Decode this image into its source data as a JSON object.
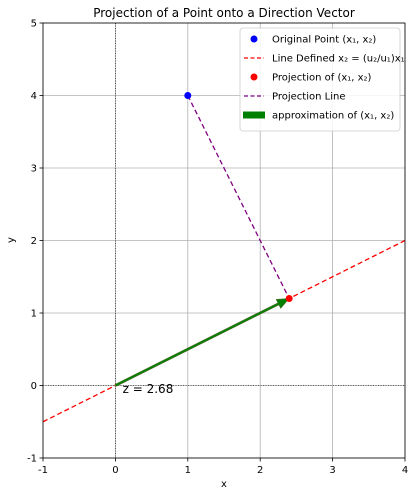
{
  "chart_data": {
    "type": "line",
    "title": "Projection of a Point onto a Direction Vector",
    "xlabel": "x",
    "ylabel": "y",
    "xlim": [
      -1,
      4
    ],
    "ylim": [
      -1,
      5
    ],
    "xticks": [
      -1,
      0,
      1,
      2,
      3,
      4
    ],
    "yticks": [
      -1,
      0,
      1,
      2,
      3,
      4,
      5
    ],
    "grid": true,
    "legend_position": "top-right",
    "original_point": {
      "x": 1,
      "y": 4,
      "color": "#0000ff"
    },
    "direction_line": {
      "slope": 0.5,
      "x_range": [
        -1,
        4
      ],
      "color": "#ff0000",
      "style": "dashed"
    },
    "projection_point": {
      "x": 2.4,
      "y": 1.2,
      "color": "#ff0000"
    },
    "projection_line": {
      "from": [
        1,
        4
      ],
      "to": [
        2.4,
        1.2
      ],
      "color": "#800080",
      "style": "dashed"
    },
    "approx_arrow": {
      "from": [
        0,
        0
      ],
      "to": [
        2.4,
        1.2
      ],
      "color": "#008000"
    },
    "annotation": {
      "text": "z = 2.68",
      "x": 0.1,
      "y": -0.05
    },
    "legend": [
      {
        "key": "original",
        "label": "Original Point (x₁, x₂)"
      },
      {
        "key": "line",
        "label": "Line Defined x₂ = (u₂/u₁)x₁"
      },
      {
        "key": "projection",
        "label": "Projection of (x₁, x₂)"
      },
      {
        "key": "projline",
        "label": "Projection Line"
      },
      {
        "key": "approx",
        "label": "approximation of (x₁, x₂)"
      }
    ]
  }
}
